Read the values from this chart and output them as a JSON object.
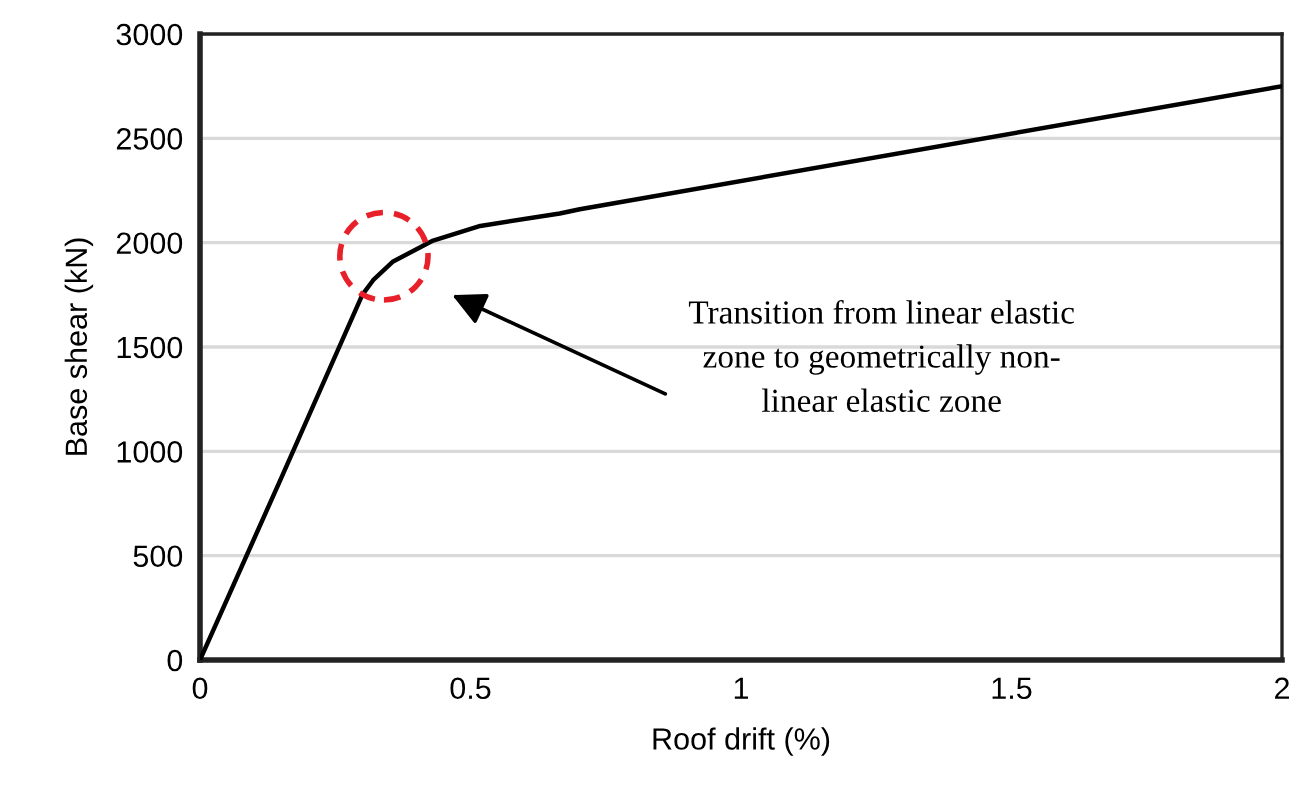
{
  "chart_data": {
    "type": "line",
    "xlabel": "Roof drift (%)",
    "ylabel": "Base shear (kN)",
    "series": [
      {
        "color": "#000000",
        "x": [
          0,
          0.148,
          0.3,
          0.32,
          0.357,
          0.431,
          0.518,
          0.665,
          0.702,
          2
        ],
        "values": [
          0,
          860,
          1750,
          1820,
          1910,
          2010,
          2080,
          2140,
          2160,
          2750
        ]
      }
    ],
    "xlim": [
      0,
      2
    ],
    "xticks": [
      0,
      0.5,
      1,
      1.5,
      2
    ],
    "ylim": [
      0,
      3000
    ],
    "yticks": [
      0,
      500,
      1000,
      1500,
      2000,
      2500,
      3000
    ],
    "grid": "y",
    "legend": false,
    "marker": "none",
    "line_style": "solid",
    "annotations": [
      "Transition from linear elastic\nzone to geometrically non-\nlinear elastic zone"
    ]
  }
}
